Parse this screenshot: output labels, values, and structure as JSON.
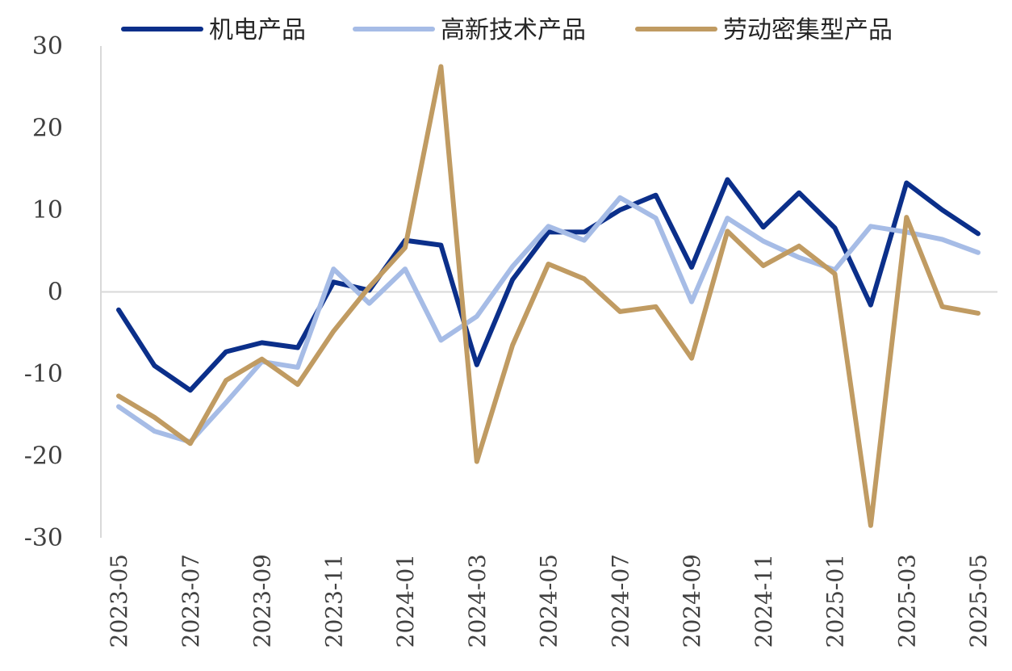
{
  "chart_data": {
    "type": "line",
    "title": "",
    "xlabel": "",
    "ylabel": "",
    "ylim": [
      -30,
      30
    ],
    "y_ticks": [
      30,
      20,
      10,
      0,
      -10,
      -20,
      -30
    ],
    "x": [
      "2023-05",
      "2023-06",
      "2023-07",
      "2023-08",
      "2023-09",
      "2023-10",
      "2023-11",
      "2023-12",
      "2024-01",
      "2024-02",
      "2024-03",
      "2024-04",
      "2024-05",
      "2024-06",
      "2024-07",
      "2024-08",
      "2024-09",
      "2024-10",
      "2024-11",
      "2024-12",
      "2025-01",
      "2025-02",
      "2025-03",
      "2025-04",
      "2025-05"
    ],
    "x_tick_labels": [
      "2023-05",
      "2023-07",
      "2023-09",
      "2023-11",
      "2024-01",
      "2024-03",
      "2024-05",
      "2024-07",
      "2024-09",
      "2024-11",
      "2025-01",
      "2025-03",
      "2025-05"
    ],
    "grid": false,
    "legend_position": "top",
    "series": [
      {
        "name": "机电产品",
        "color": "#0b2f8a",
        "values": [
          -2.2,
          -9.0,
          -12.0,
          -7.3,
          -6.2,
          -6.8,
          1.2,
          0.2,
          6.3,
          5.7,
          -8.9,
          1.5,
          7.3,
          7.3,
          10.0,
          11.8,
          3.0,
          13.7,
          7.9,
          12.1,
          7.8,
          -1.6,
          13.3,
          10.0,
          7.1
        ]
      },
      {
        "name": "高新技术产品",
        "color": "#a6bce6",
        "values": [
          -14.0,
          -17.0,
          -18.3,
          -13.5,
          -8.5,
          -9.2,
          2.8,
          -1.4,
          2.8,
          -5.9,
          -3.0,
          3.1,
          8.0,
          6.3,
          11.5,
          9.0,
          -1.2,
          9.0,
          6.2,
          4.2,
          2.7,
          8.0,
          7.3,
          6.4,
          4.8
        ]
      },
      {
        "name": "劳动密集型产品",
        "color": "#c09b62",
        "values": [
          -12.7,
          -15.3,
          -18.5,
          -10.8,
          -8.2,
          -11.3,
          -4.8,
          0.6,
          5.4,
          27.5,
          -20.7,
          -6.5,
          3.4,
          1.6,
          -2.4,
          -1.8,
          -8.1,
          7.4,
          3.2,
          5.6,
          2.2,
          -28.5,
          9.1,
          -1.8,
          -2.6
        ]
      }
    ],
    "axis_color": "#d9d9d9"
  }
}
